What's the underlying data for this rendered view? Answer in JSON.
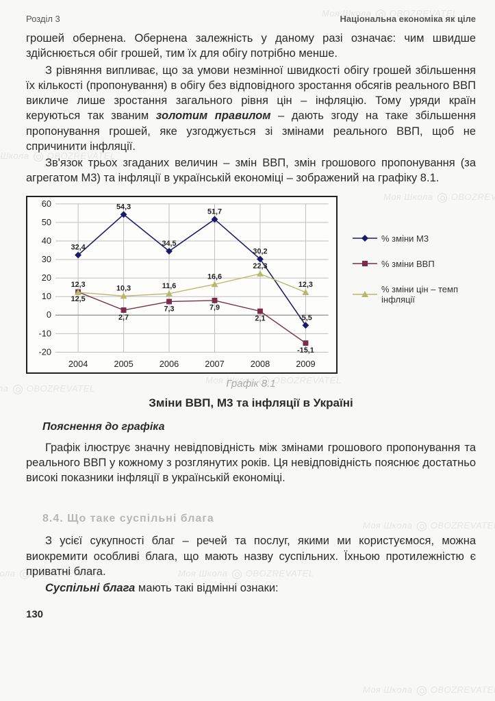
{
  "header": {
    "left": "Розділ 3",
    "right": "Національна економіка як ціле"
  },
  "paragraphs": {
    "p1": "грошей обернена. Обернена залежність у даному разі означає: чим швидше здійснюється обіг грошей, тим їх для обігу потрібно менше.",
    "p2a": "З рівняння випливає, що за умови незмінної швидкості обігу грошей збільшення їх кількості (пропонування) в обігу без відповідного зростання обсягів реального ВВП викличе лише зростання загального рівня цін – інфляцію. Тому уряди країн керуються так званим ",
    "p2_em": "золотим правилом",
    "p2b": " – дають згоду на таке збільшення пропонування грошей, яке узгоджується зі змінами реального ВВП, щоб не спричинити інфляції.",
    "p3": "Зв'язок трьох згаданих величин – змін ВВП, змін грошового пропонування (за агрегатом М3) та інфляції в українській економіці – зображений на графіку 8.1."
  },
  "chart": {
    "type": "line",
    "caption": "Графік 8.1",
    "title": "Зміни ВВП, М3 та інфляції в Україні",
    "categories": [
      "2004",
      "2005",
      "2006",
      "2007",
      "2008",
      "2009"
    ],
    "ylim": [
      -20,
      60
    ],
    "ytick_step": 10,
    "series": [
      {
        "name": "% зміни М3",
        "color": "#1a1a6a",
        "marker": "diamond",
        "values": [
          32.4,
          54.3,
          34.5,
          51.7,
          30.2,
          -5.5
        ],
        "line_width": 1.6
      },
      {
        "name": "% зміни ВВП",
        "color": "#7a2c4a",
        "marker": "square",
        "values": [
          12.5,
          2.7,
          7.3,
          7.9,
          2.1,
          -15.1
        ],
        "line_width": 1.4
      },
      {
        "name": "% зміни цін – темп інфляції",
        "color": "#b8b86a",
        "marker": "triangle",
        "values": [
          12.3,
          10.3,
          11.6,
          16.6,
          22.3,
          12.3
        ],
        "line_width": 1.4
      }
    ],
    "grid_color": "#bfbfbf",
    "axis_color": "#222222",
    "background_color": "#fdfdfb",
    "label_fontsize": 11,
    "tick_fontsize": 13
  },
  "explain": {
    "heading": "Пояснення до графіка",
    "text": "Графік ілюструє значну невідповідність між змінами грошового пропонування та реального ВВП у кожному з розглянутих років. Ця невідповідність пояснює достатньо високі показники інфляції в українській економіці."
  },
  "section": {
    "num_title": "8.4. Що таке суспільні блага",
    "p1a": "З усієї сукупності благ – речей та послуг, якими ми користуємося, можна виокремити особливі блага, що мають назву суспільних. Їхньою протилежністю є приватні блага.",
    "p2_em": "Суспільні блага",
    "p2b": " мають такі відмінні ознаки:"
  },
  "page_number": "130",
  "watermark_text": "Моя Школа",
  "watermark_brand": "OBOZREVATEL"
}
